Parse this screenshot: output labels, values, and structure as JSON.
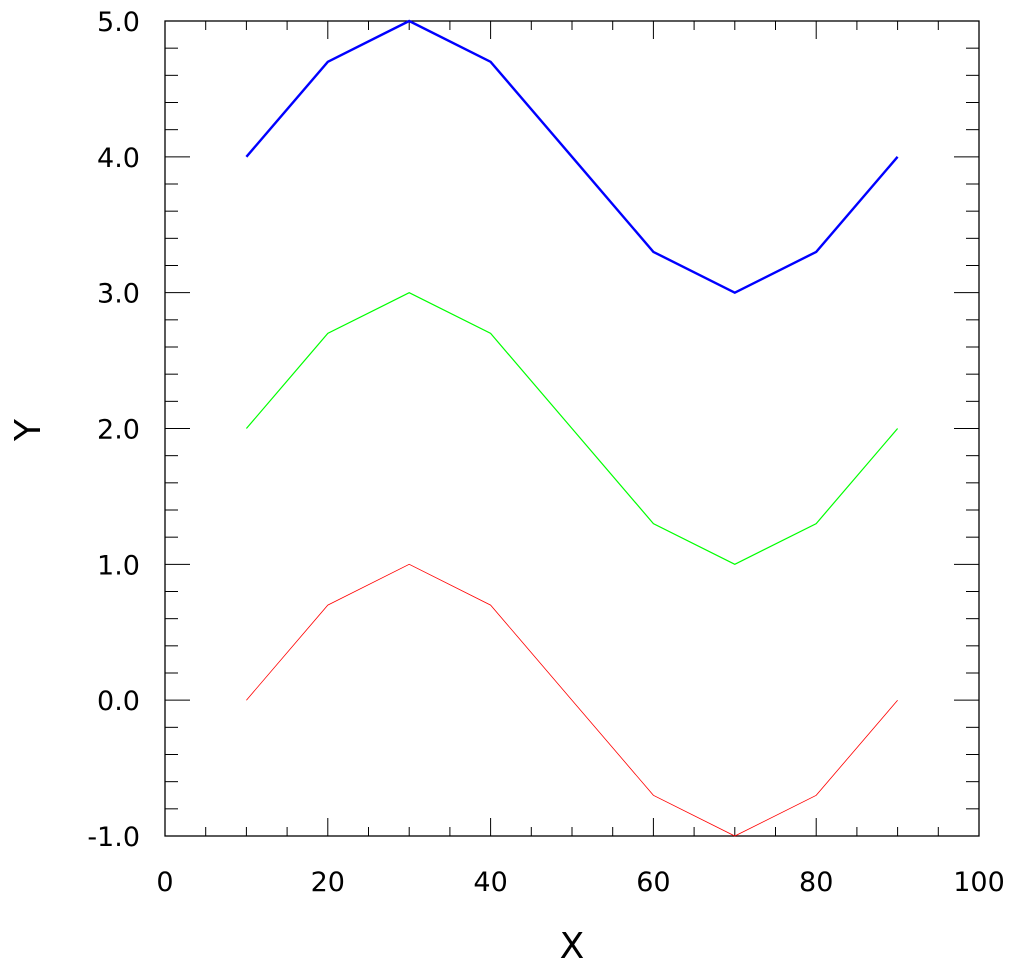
{
  "chart_data": {
    "type": "line",
    "title": "",
    "xlabel": "X",
    "ylabel": "Y",
    "xlim": [
      0,
      100
    ],
    "ylim": [
      -1,
      5
    ],
    "x_ticks": [
      0,
      20,
      40,
      60,
      80,
      100
    ],
    "x_tick_labels": [
      "0",
      "20",
      "40",
      "60",
      "80",
      "100"
    ],
    "y_ticks": [
      -1,
      0,
      1,
      2,
      3,
      4,
      5
    ],
    "y_tick_labels": [
      "-1.0",
      "0.0",
      "1.0",
      "2.0",
      "3.0",
      "4.0",
      "5.0"
    ],
    "grid": false,
    "x": [
      10,
      20,
      30,
      40,
      50,
      60,
      70,
      80,
      90
    ],
    "series": [
      {
        "color": "#0000ff",
        "values": [
          4.0,
          4.7,
          5.0,
          4.7,
          4.0,
          3.3,
          3.0,
          3.3,
          4.0
        ]
      },
      {
        "color": "#00ff00",
        "values": [
          2.0,
          2.7,
          3.0,
          2.7,
          2.0,
          1.3,
          1.0,
          1.3,
          2.0
        ]
      },
      {
        "color": "#ff0000",
        "values": [
          0.0,
          0.7,
          1.0,
          0.7,
          0.0,
          -0.7,
          -1.0,
          -0.7,
          0.0
        ]
      }
    ]
  }
}
